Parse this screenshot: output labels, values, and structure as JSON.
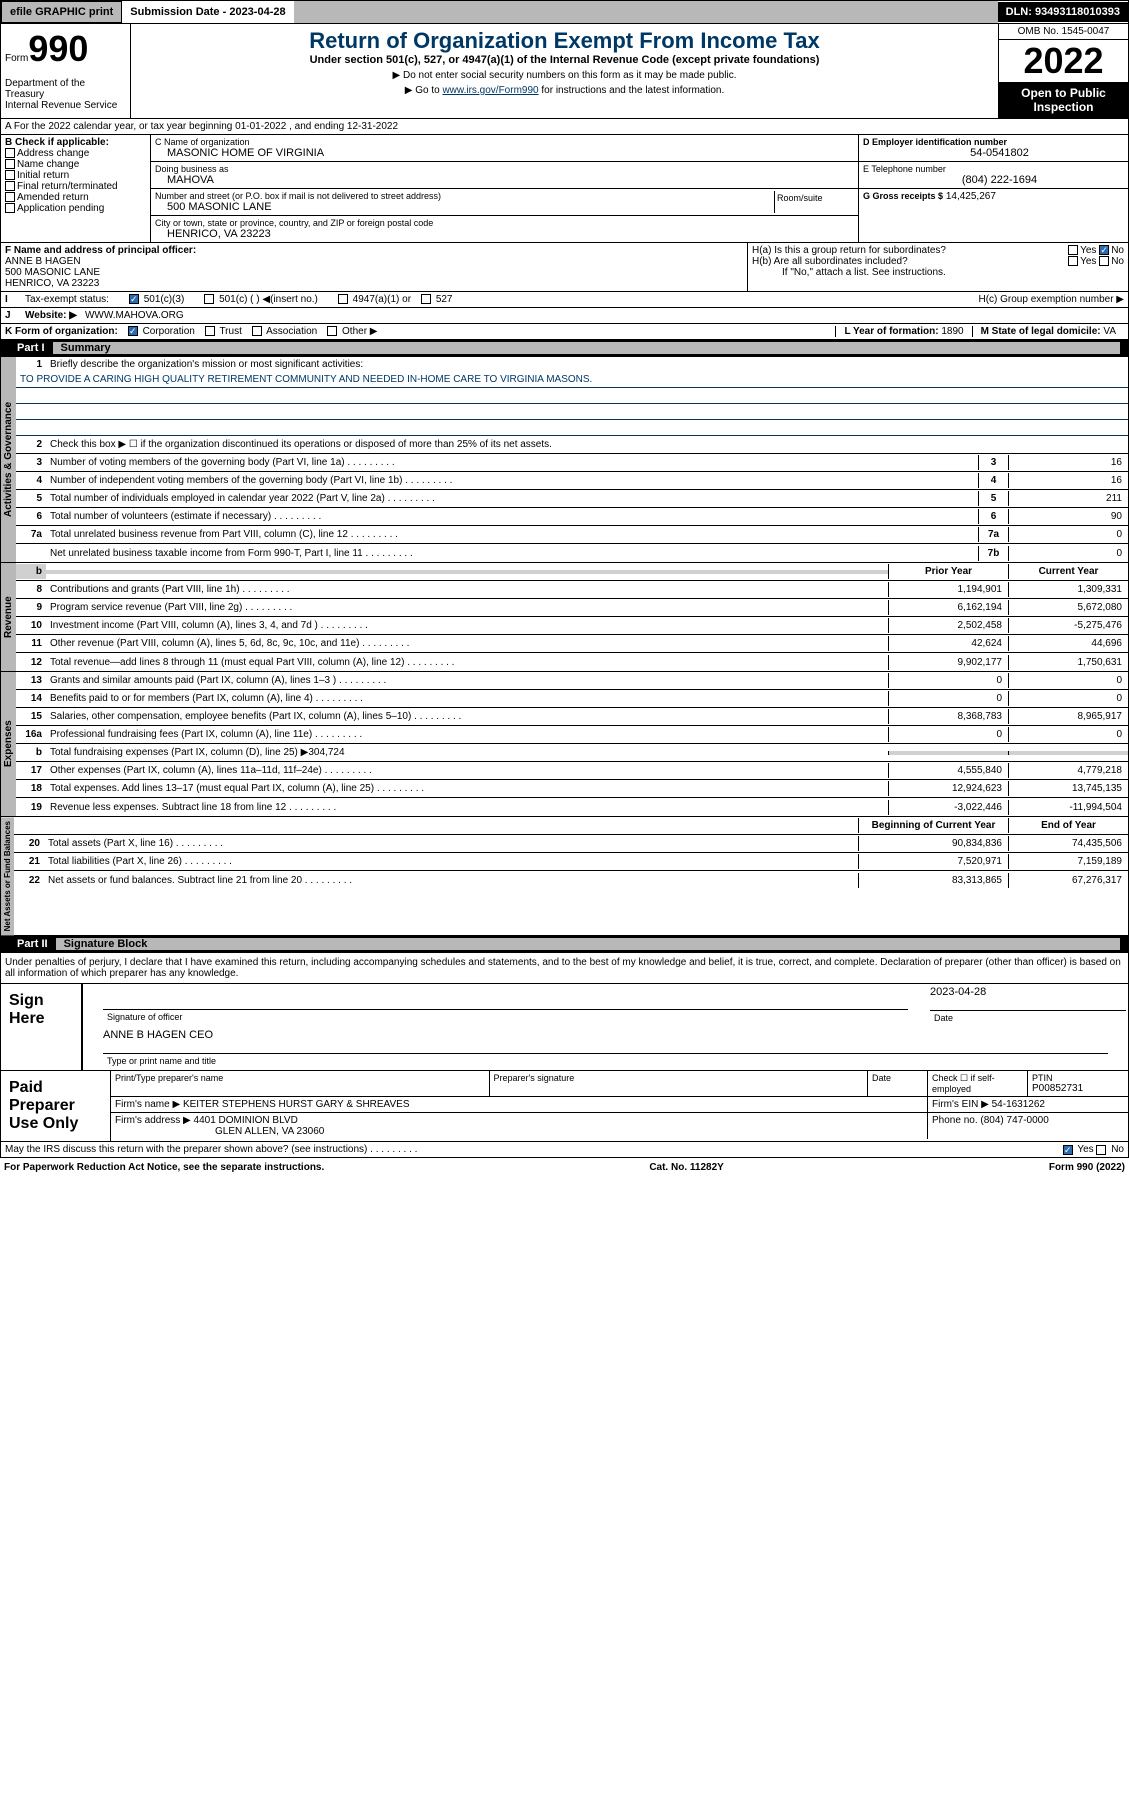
{
  "top": {
    "efile": "efile GRAPHIC print",
    "subdate_label": "Submission Date - ",
    "subdate": "2023-04-28",
    "dln": "DLN: 93493118010393"
  },
  "header": {
    "form_label": "Form",
    "form_num": "990",
    "dept": "Department of the Treasury\nInternal Revenue Service",
    "title": "Return of Organization Exempt From Income Tax",
    "subtitle": "Under section 501(c), 527, or 4947(a)(1) of the Internal Revenue Code (except private foundations)",
    "note1": "▶ Do not enter social security numbers on this form as it may be made public.",
    "note2_pre": "▶ Go to ",
    "note2_link": "www.irs.gov/Form990",
    "note2_post": " for instructions and the latest information.",
    "omb": "OMB No. 1545-0047",
    "year": "2022",
    "open": "Open to Public Inspection"
  },
  "lineA": "A For the 2022 calendar year, or tax year beginning 01-01-2022    , and ending 12-31-2022",
  "B": {
    "label": "B Check if applicable:",
    "items": [
      "Address change",
      "Name change",
      "Initial return",
      "Final return/terminated",
      "Amended return",
      "Application pending"
    ]
  },
  "C": {
    "name_label": "C Name of organization",
    "name": "MASONIC HOME OF VIRGINIA",
    "dba_label": "Doing business as",
    "dba": "MAHOVA",
    "addr_label": "Number and street (or P.O. box if mail is not delivered to street address)",
    "room_label": "Room/suite",
    "addr": "500 MASONIC LANE",
    "city_label": "City or town, state or province, country, and ZIP or foreign postal code",
    "city": "HENRICO, VA  23223"
  },
  "D": {
    "label": "D Employer identification number",
    "val": "54-0541802"
  },
  "E": {
    "label": "E Telephone number",
    "val": "(804) 222-1694"
  },
  "G": {
    "label": "G Gross receipts $",
    "val": "14,425,267"
  },
  "F": {
    "label": "F Name and address of principal officer:",
    "name": "ANNE B HAGEN",
    "addr1": "500 MASONIC LANE",
    "addr2": "HENRICO, VA  23223"
  },
  "H": {
    "a": "H(a)  Is this a group return for subordinates?",
    "a_yes": "Yes",
    "a_no": "No",
    "b": "H(b)  Are all subordinates included?",
    "b_note": "If \"No,\" attach a list. See instructions.",
    "c": "H(c)  Group exemption number ▶"
  },
  "I": {
    "label": "Tax-exempt status:",
    "c3": "501(c)(3)",
    "c": "501(c) (  ) ◀(insert no.)",
    "a1": "4947(a)(1) or",
    "s527": "527"
  },
  "J": {
    "label": "Website: ▶",
    "val": "WWW.MAHOVA.ORG"
  },
  "K": {
    "label": "K Form of organization:",
    "corp": "Corporation",
    "trust": "Trust",
    "assoc": "Association",
    "other": "Other ▶"
  },
  "L": {
    "label": "L Year of formation:",
    "val": "1890"
  },
  "M": {
    "label": "M State of legal domicile:",
    "val": "VA"
  },
  "part1": {
    "num": "Part I",
    "title": "Summary"
  },
  "summary": {
    "q1": "Briefly describe the organization's mission or most significant activities:",
    "mission": "TO PROVIDE A CARING HIGH QUALITY RETIREMENT COMMUNITY AND NEEDED IN-HOME CARE TO VIRGINIA MASONS.",
    "q2": "Check this box ▶ ☐ if the organization discontinued its operations or disposed of more than 25% of its net assets.",
    "lines": [
      {
        "n": "3",
        "t": "Number of voting members of the governing body (Part VI, line 1a)",
        "b": "3",
        "v": "16"
      },
      {
        "n": "4",
        "t": "Number of independent voting members of the governing body (Part VI, line 1b)",
        "b": "4",
        "v": "16"
      },
      {
        "n": "5",
        "t": "Total number of individuals employed in calendar year 2022 (Part V, line 2a)",
        "b": "5",
        "v": "211"
      },
      {
        "n": "6",
        "t": "Total number of volunteers (estimate if necessary)",
        "b": "6",
        "v": "90"
      },
      {
        "n": "7a",
        "t": "Total unrelated business revenue from Part VIII, column (C), line 12",
        "b": "7a",
        "v": "0"
      },
      {
        "n": "",
        "t": "Net unrelated business taxable income from Form 990-T, Part I, line 11",
        "b": "7b",
        "v": "0"
      }
    ],
    "hdr_prior": "Prior Year",
    "hdr_curr": "Current Year",
    "revenue": [
      {
        "n": "8",
        "t": "Contributions and grants (Part VIII, line 1h)",
        "p": "1,194,901",
        "c": "1,309,331"
      },
      {
        "n": "9",
        "t": "Program service revenue (Part VIII, line 2g)",
        "p": "6,162,194",
        "c": "5,672,080"
      },
      {
        "n": "10",
        "t": "Investment income (Part VIII, column (A), lines 3, 4, and 7d )",
        "p": "2,502,458",
        "c": "-5,275,476"
      },
      {
        "n": "11",
        "t": "Other revenue (Part VIII, column (A), lines 5, 6d, 8c, 9c, 10c, and 11e)",
        "p": "42,624",
        "c": "44,696"
      },
      {
        "n": "12",
        "t": "Total revenue—add lines 8 through 11 (must equal Part VIII, column (A), line 12)",
        "p": "9,902,177",
        "c": "1,750,631"
      }
    ],
    "expenses": [
      {
        "n": "13",
        "t": "Grants and similar amounts paid (Part IX, column (A), lines 1–3 )",
        "p": "0",
        "c": "0"
      },
      {
        "n": "14",
        "t": "Benefits paid to or for members (Part IX, column (A), line 4)",
        "p": "0",
        "c": "0"
      },
      {
        "n": "15",
        "t": "Salaries, other compensation, employee benefits (Part IX, column (A), lines 5–10)",
        "p": "8,368,783",
        "c": "8,965,917"
      },
      {
        "n": "16a",
        "t": "Professional fundraising fees (Part IX, column (A), line 11e)",
        "p": "0",
        "c": "0"
      },
      {
        "n": "b",
        "t": "Total fundraising expenses (Part IX, column (D), line 25) ▶304,724",
        "p": "",
        "c": "",
        "shaded": true
      },
      {
        "n": "17",
        "t": "Other expenses (Part IX, column (A), lines 11a–11d, 11f–24e)",
        "p": "4,555,840",
        "c": "4,779,218"
      },
      {
        "n": "18",
        "t": "Total expenses. Add lines 13–17 (must equal Part IX, column (A), line 25)",
        "p": "12,924,623",
        "c": "13,745,135"
      },
      {
        "n": "19",
        "t": "Revenue less expenses. Subtract line 18 from line 12",
        "p": "-3,022,446",
        "c": "-11,994,504"
      }
    ],
    "hdr_beg": "Beginning of Current Year",
    "hdr_end": "End of Year",
    "netassets": [
      {
        "n": "20",
        "t": "Total assets (Part X, line 16)",
        "p": "90,834,836",
        "c": "74,435,506"
      },
      {
        "n": "21",
        "t": "Total liabilities (Part X, line 26)",
        "p": "7,520,971",
        "c": "7,159,189"
      },
      {
        "n": "22",
        "t": "Net assets or fund balances. Subtract line 21 from line 20",
        "p": "83,313,865",
        "c": "67,276,317"
      }
    ],
    "vlabels": {
      "gov": "Activities & Governance",
      "rev": "Revenue",
      "exp": "Expenses",
      "net": "Net Assets or Fund Balances"
    }
  },
  "part2": {
    "num": "Part II",
    "title": "Signature Block"
  },
  "sig": {
    "decl": "Under penalties of perjury, I declare that I have examined this return, including accompanying schedules and statements, and to the best of my knowledge and belief, it is true, correct, and complete. Declaration of preparer (other than officer) is based on all information of which preparer has any knowledge.",
    "here": "Sign Here",
    "officer": "Signature of officer",
    "date": "Date",
    "sigdate": "2023-04-28",
    "name": "ANNE B HAGEN  CEO",
    "name_label": "Type or print name and title"
  },
  "prep": {
    "label": "Paid Preparer Use Only",
    "h1": "Print/Type preparer's name",
    "h2": "Preparer's signature",
    "h3": "Date",
    "h4": "Check ☐ if self-employed",
    "h5": "PTIN",
    "ptin": "P00852731",
    "firm_label": "Firm's name    ▶",
    "firm": "KEITER STEPHENS HURST GARY & SHREAVES",
    "ein_label": "Firm's EIN ▶",
    "ein": "54-1631262",
    "addr_label": "Firm's address ▶",
    "addr1": "4401 DOMINION BLVD",
    "addr2": "GLEN ALLEN, VA  23060",
    "phone_label": "Phone no.",
    "phone": "(804) 747-0000"
  },
  "discuss": {
    "q": "May the IRS discuss this return with the preparer shown above? (see instructions)",
    "yes": "Yes",
    "no": "No"
  },
  "footer": {
    "left": "For Paperwork Reduction Act Notice, see the separate instructions.",
    "mid": "Cat. No. 11282Y",
    "right": "Form 990 (2022)"
  }
}
